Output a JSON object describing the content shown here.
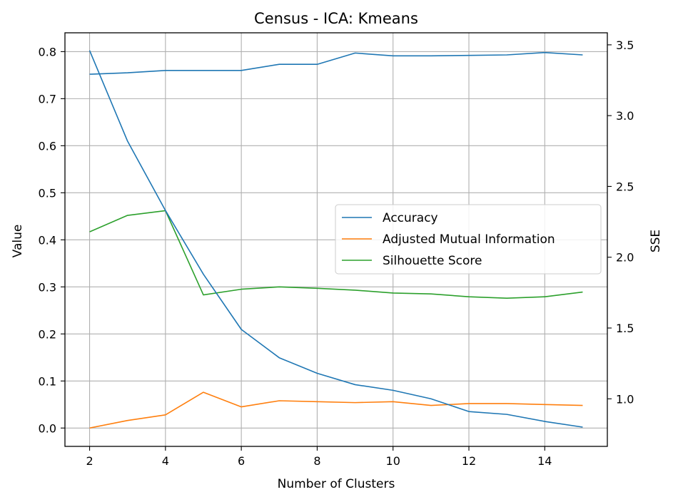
{
  "chart_data": {
    "type": "line",
    "title": "Census - ICA: Kmeans",
    "xlabel": "Number of Clusters",
    "ylabel": "Value",
    "y2label": "SSE",
    "x": [
      2,
      3,
      4,
      5,
      6,
      7,
      8,
      9,
      10,
      11,
      12,
      13,
      14,
      15
    ],
    "xlim": [
      1.35,
      15.65
    ],
    "xticks": [
      "2",
      "4",
      "6",
      "8",
      "10",
      "12",
      "14"
    ],
    "ylim": [
      -0.039,
      0.84
    ],
    "yticks": [
      "0.0",
      "0.1",
      "0.2",
      "0.3",
      "0.4",
      "0.5",
      "0.6",
      "0.7",
      "0.8"
    ],
    "y2lim": [
      0.664,
      3.585
    ],
    "y2ticks": [
      "1.0",
      "1.5",
      "2.0",
      "2.5",
      "3.0",
      "3.5"
    ],
    "grid": true,
    "legend_position": "center-right",
    "series": [
      {
        "name": "Accuracy",
        "color": "#1f77b4",
        "axis": "left",
        "values": [
          0.752,
          0.755,
          0.76,
          0.76,
          0.76,
          0.773,
          0.773,
          0.797,
          0.791,
          0.791,
          0.792,
          0.793,
          0.798,
          0.793
        ]
      },
      {
        "name": "Adjusted Mutual Information",
        "color": "#ff7f0e",
        "axis": "left",
        "values": [
          0.0,
          0.016,
          0.028,
          0.076,
          0.045,
          0.058,
          0.056,
          0.054,
          0.056,
          0.048,
          0.052,
          0.052,
          0.05,
          0.048
        ]
      },
      {
        "name": "Silhouette Score",
        "color": "#2ca02c",
        "axis": "left",
        "values": [
          0.417,
          0.452,
          0.462,
          0.283,
          0.295,
          0.3,
          0.297,
          0.293,
          0.287,
          0.285,
          0.279,
          0.276,
          0.279,
          0.289
        ]
      },
      {
        "color": "#1f77b4",
        "axis": "right",
        "values": [
          3.46,
          2.82,
          2.33,
          1.88,
          1.49,
          1.29,
          1.18,
          1.1,
          1.06,
          1.0,
          0.91,
          0.89,
          0.84,
          0.8
        ]
      }
    ]
  }
}
